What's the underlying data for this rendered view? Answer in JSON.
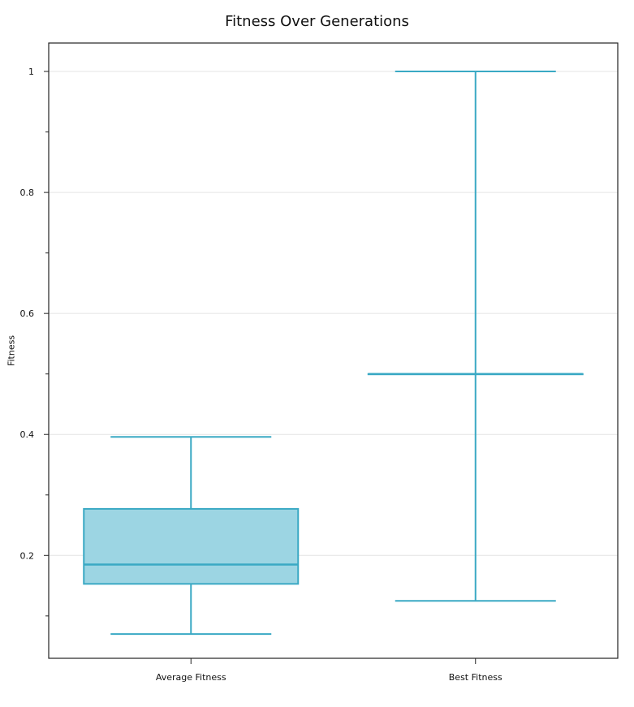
{
  "chart_data": {
    "type": "box",
    "title": "Fitness Over Generations",
    "xlabel": "",
    "ylabel": "Fitness",
    "categories": [
      "Average Fitness",
      "Best Fitness"
    ],
    "boxes": [
      {
        "name": "Average Fitness",
        "whisker_low": 0.07,
        "q1": 0.153,
        "median": 0.185,
        "q3": 0.277,
        "whisker_high": 0.396
      },
      {
        "name": "Best Fitness",
        "whisker_low": 0.125,
        "q1": 0.5,
        "median": 0.5,
        "q3": 0.5,
        "whisker_high": 1.0
      }
    ],
    "ylim": [
      0.03,
      1.047
    ],
    "yticks": [
      0.2,
      0.4,
      0.6,
      0.8,
      1
    ],
    "ytick_labels": [
      "0.2",
      "0.4",
      "0.6",
      "0.8",
      "1"
    ],
    "grid": true,
    "color": "#3aa9c4",
    "fill_color": "#9cd5e3"
  }
}
